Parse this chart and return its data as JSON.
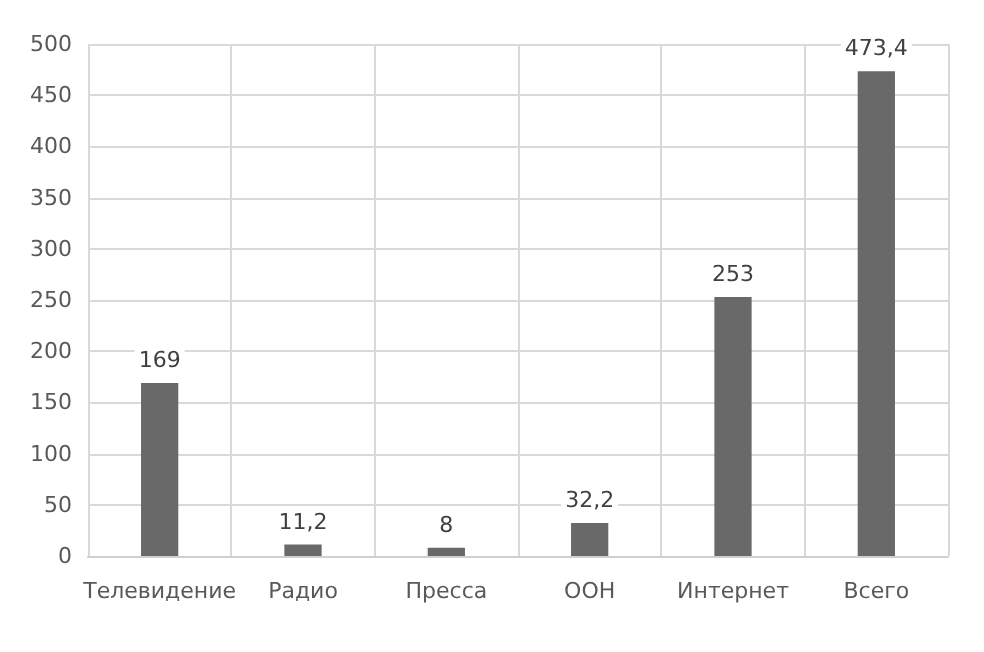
{
  "chart_data": {
    "type": "bar",
    "categories": [
      "Телевидение",
      "Радио",
      "Пресса",
      "ООН",
      "Интернет",
      "Всего"
    ],
    "values": [
      169,
      11.2,
      8,
      32.2,
      253,
      473.4
    ],
    "value_labels": [
      "169",
      "11,2",
      "8",
      "32,2",
      "253",
      "473,4"
    ],
    "color": "#696969",
    "ylim": [
      0,
      500
    ],
    "yticks": [
      0,
      50,
      100,
      150,
      200,
      250,
      300,
      350,
      400,
      450,
      500
    ],
    "grid": true
  }
}
